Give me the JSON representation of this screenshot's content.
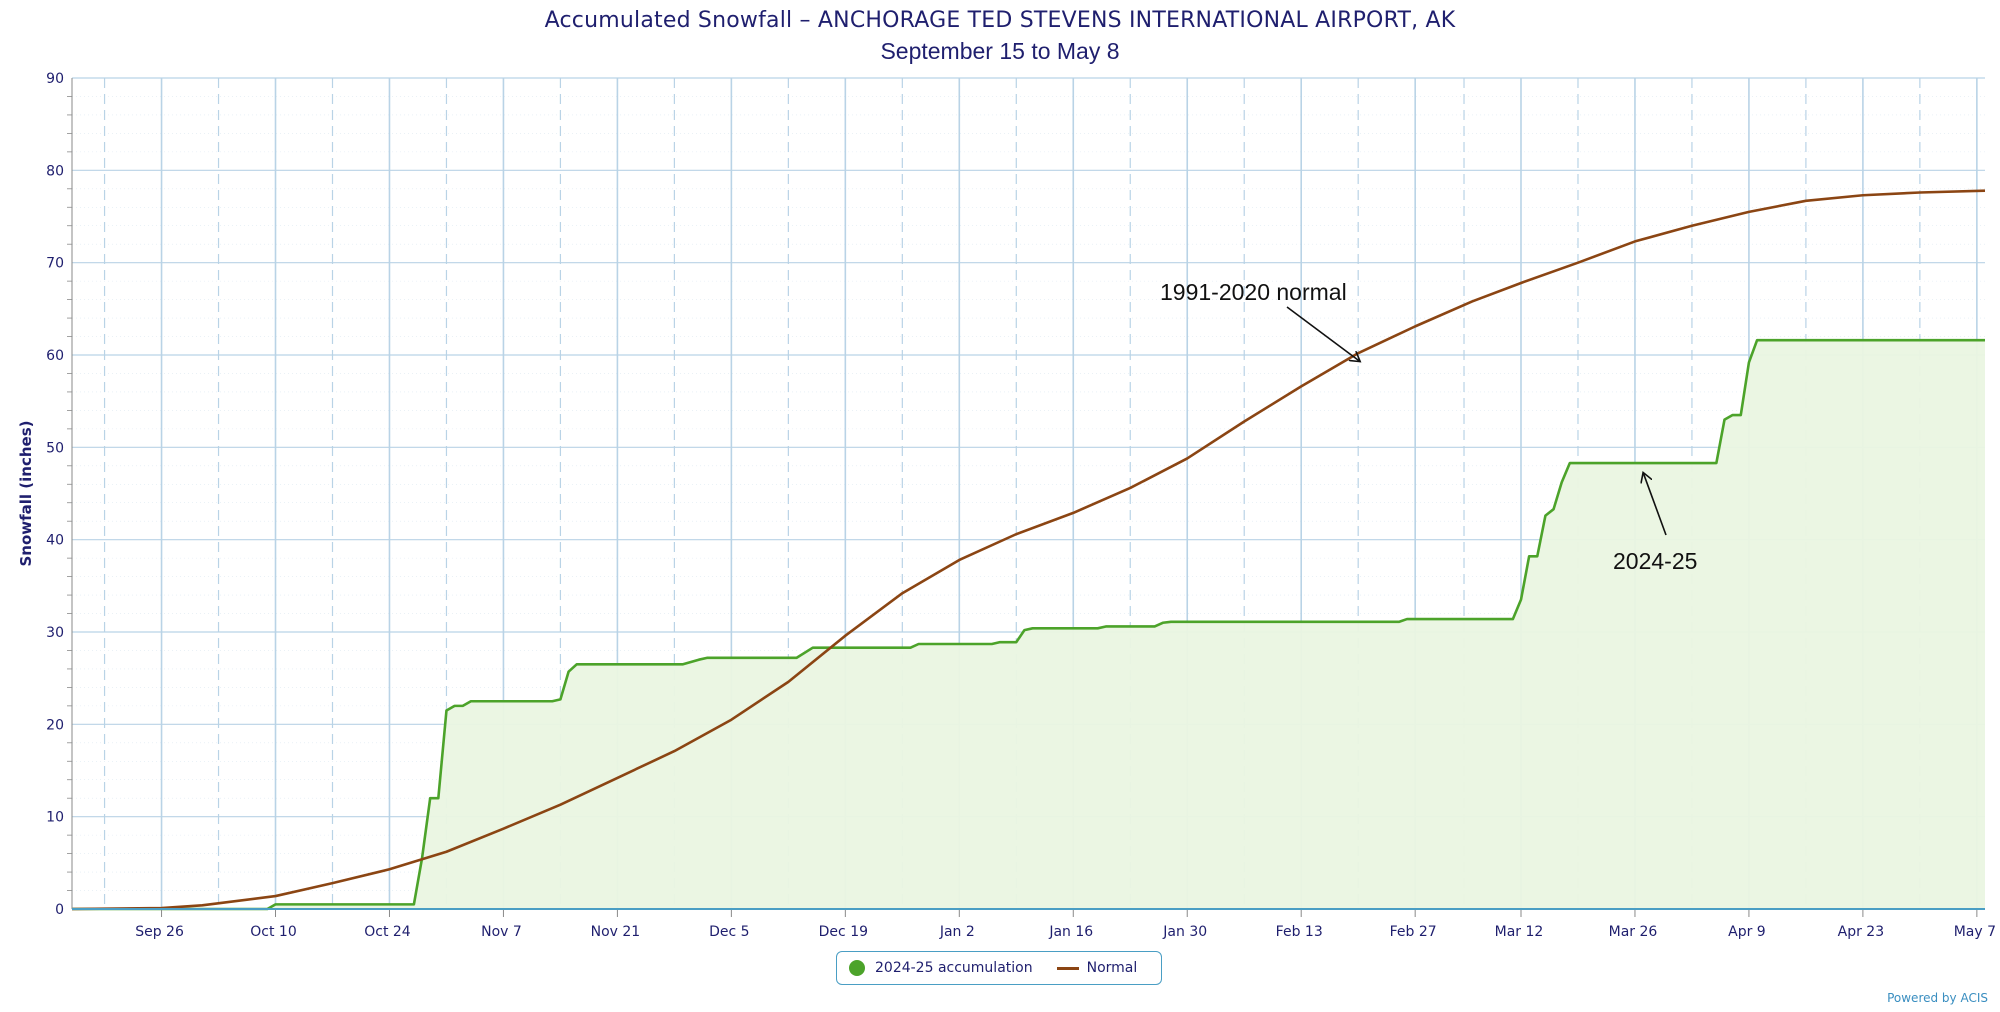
{
  "colors": {
    "accumulation": "#4ca32a",
    "accumulation_fill": "#eaf5e2",
    "normal": "#8b4513",
    "grid_major": "#b9d3e6",
    "grid_minor": "#dde9f2",
    "axis_text": "#1f1f6e"
  },
  "chart_data": {
    "type": "line",
    "title": "Accumulated Snowfall – ANCHORAGE TED STEVENS INTERNATIONAL AIRPORT, AK",
    "subtitle": "September 15 to May 8",
    "ylabel": "Snowfall (inches)",
    "xlabel": "",
    "ylim": [
      0,
      90
    ],
    "yticks": [
      0,
      10,
      20,
      30,
      40,
      50,
      60,
      70,
      80,
      90
    ],
    "x_range": [
      "2024-09-15",
      "2025-05-08"
    ],
    "xtick_labels": [
      "Sep 26",
      "Oct 10",
      "Oct 24",
      "Nov 7",
      "Nov 21",
      "Dec 5",
      "Dec 19",
      "Jan 2",
      "Jan 16",
      "Jan 30",
      "Feb 13",
      "Feb 27",
      "Mar 12",
      "Mar 26",
      "Apr 9",
      "Apr 23",
      "May 7"
    ],
    "xtick_dates": [
      "2024-09-26",
      "2024-10-10",
      "2024-10-24",
      "2024-11-07",
      "2024-11-21",
      "2024-12-05",
      "2024-12-19",
      "2025-01-02",
      "2025-01-16",
      "2025-01-30",
      "2025-02-13",
      "2025-02-27",
      "2025-03-12",
      "2025-03-26",
      "2025-04-09",
      "2025-04-23",
      "2025-05-07"
    ],
    "grid": true,
    "legend_position": "bottom-center",
    "series": [
      {
        "name": "2024-25 accumulation",
        "style": "step-area",
        "points": [
          [
            "2024-09-15",
            0
          ],
          [
            "2024-10-09",
            0
          ],
          [
            "2024-10-10",
            0.5
          ],
          [
            "2024-10-27",
            0.5
          ],
          [
            "2024-10-28",
            5.5
          ],
          [
            "2024-10-29",
            12
          ],
          [
            "2024-10-30",
            12
          ],
          [
            "2024-10-31",
            21.5
          ],
          [
            "2024-11-01",
            22
          ],
          [
            "2024-11-02",
            22
          ],
          [
            "2024-11-03",
            22.5
          ],
          [
            "2024-11-13",
            22.5
          ],
          [
            "2024-11-14",
            22.7
          ],
          [
            "2024-11-15",
            25.7
          ],
          [
            "2024-11-16",
            26.5
          ],
          [
            "2024-11-29",
            26.5
          ],
          [
            "2024-12-01",
            27
          ],
          [
            "2024-12-02",
            27.2
          ],
          [
            "2024-12-13",
            27.2
          ],
          [
            "2024-12-15",
            28.3
          ],
          [
            "2024-12-27",
            28.3
          ],
          [
            "2024-12-28",
            28.7
          ],
          [
            "2025-01-06",
            28.7
          ],
          [
            "2025-01-07",
            28.9
          ],
          [
            "2025-01-09",
            28.9
          ],
          [
            "2025-01-10",
            30.2
          ],
          [
            "2025-01-11",
            30.4
          ],
          [
            "2025-01-19",
            30.4
          ],
          [
            "2025-01-20",
            30.6
          ],
          [
            "2025-01-26",
            30.6
          ],
          [
            "2025-01-27",
            31
          ],
          [
            "2025-01-28",
            31.1
          ],
          [
            "2025-02-25",
            31.1
          ],
          [
            "2025-02-26",
            31.4
          ],
          [
            "2025-03-11",
            31.4
          ],
          [
            "2025-03-12",
            33.5
          ],
          [
            "2025-03-13",
            38.2
          ],
          [
            "2025-03-14",
            38.2
          ],
          [
            "2025-03-15",
            42.6
          ],
          [
            "2025-03-16",
            43.3
          ],
          [
            "2025-03-17",
            46.2
          ],
          [
            "2025-03-18",
            48.3
          ],
          [
            "2025-04-05",
            48.3
          ],
          [
            "2025-04-06",
            53
          ],
          [
            "2025-04-07",
            53.5
          ],
          [
            "2025-04-08",
            53.5
          ],
          [
            "2025-04-09",
            59.2
          ],
          [
            "2025-04-10",
            61.6
          ],
          [
            "2025-05-08",
            61.6
          ]
        ]
      },
      {
        "name": "Normal",
        "style": "line",
        "points": [
          [
            "2024-09-15",
            0
          ],
          [
            "2024-09-26",
            0.1
          ],
          [
            "2024-10-01",
            0.4
          ],
          [
            "2024-10-10",
            1.4
          ],
          [
            "2024-10-17",
            2.8
          ],
          [
            "2024-10-24",
            4.3
          ],
          [
            "2024-10-31",
            6.2
          ],
          [
            "2024-11-07",
            8.7
          ],
          [
            "2024-11-14",
            11.3
          ],
          [
            "2024-11-21",
            14.2
          ],
          [
            "2024-11-28",
            17.1
          ],
          [
            "2024-12-05",
            20.5
          ],
          [
            "2024-12-12",
            24.6
          ],
          [
            "2024-12-19",
            29.6
          ],
          [
            "2024-12-26",
            34.2
          ],
          [
            "2025-01-02",
            37.8
          ],
          [
            "2025-01-09",
            40.6
          ],
          [
            "2025-01-16",
            42.9
          ],
          [
            "2025-01-23",
            45.6
          ],
          [
            "2025-01-30",
            48.8
          ],
          [
            "2025-02-06",
            52.8
          ],
          [
            "2025-02-13",
            56.6
          ],
          [
            "2025-02-20",
            60.2
          ],
          [
            "2025-02-27",
            63.1
          ],
          [
            "2025-03-06",
            65.8
          ],
          [
            "2025-03-12",
            67.8
          ],
          [
            "2025-03-19",
            70
          ],
          [
            "2025-03-26",
            72.3
          ],
          [
            "2025-04-02",
            74
          ],
          [
            "2025-04-09",
            75.5
          ],
          [
            "2025-04-16",
            76.7
          ],
          [
            "2025-04-23",
            77.3
          ],
          [
            "2025-04-30",
            77.6
          ],
          [
            "2025-05-08",
            77.8
          ]
        ]
      }
    ],
    "annotations": [
      {
        "text": "1991-2020 normal",
        "target": [
          "2025-02-20",
          59.5
        ]
      },
      {
        "text": "2024-25",
        "target": [
          "2025-03-27",
          47.5
        ]
      }
    ]
  },
  "legend": {
    "items": [
      {
        "label": "2024-25 accumulation"
      },
      {
        "label": "Normal"
      }
    ]
  },
  "credit": "Powered by ACIS"
}
